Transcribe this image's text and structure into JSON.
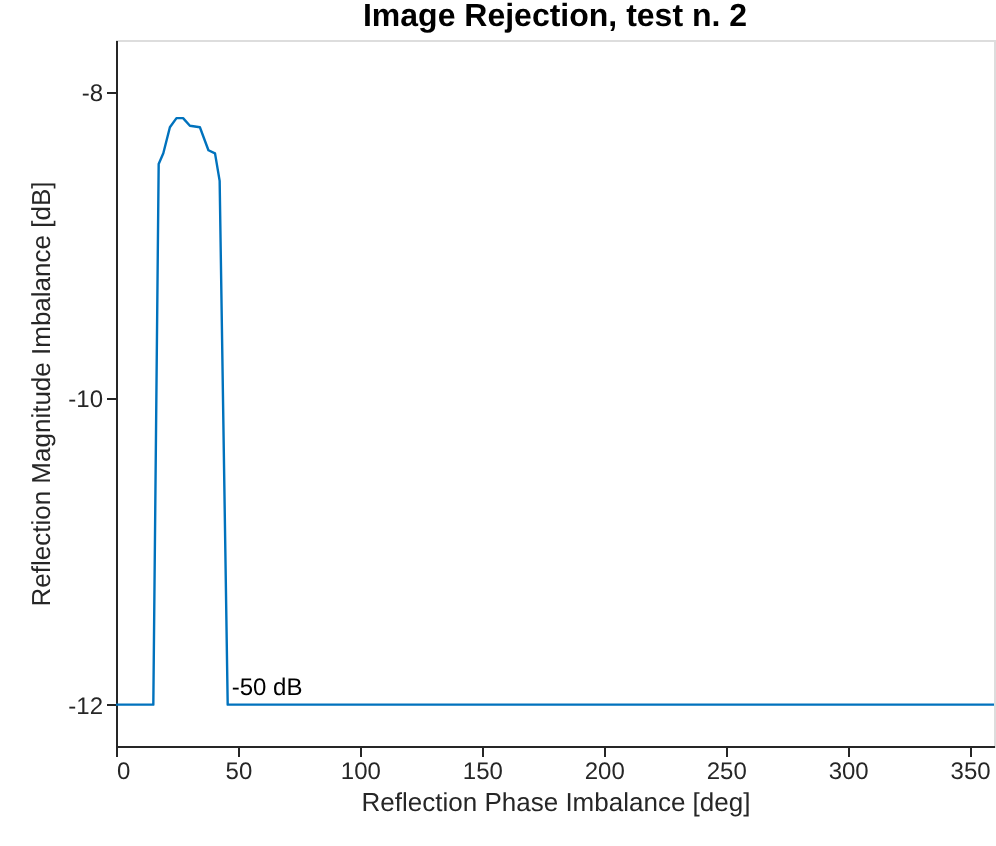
{
  "chart_data": {
    "type": "line",
    "title": "Image Rejection, test n. 2",
    "xlabel": "Reflection Phase Imbalance [deg]",
    "ylabel": "Reflection Magnitude Imbalance [dB]",
    "x": [
      0,
      15.3,
      17.5,
      19.4,
      22.1,
      24.8,
      27.5,
      30.3,
      34.4,
      37.9,
      40.6,
      42.5,
      45.8,
      360
    ],
    "series": [
      {
        "color": "#0072bd",
        "values": [
          -12,
          -12,
          -8.47,
          -8.4,
          -8.23,
          -8.17,
          -8.17,
          -8.22,
          -8.23,
          -8.38,
          -8.4,
          -8.58,
          -12,
          -12
        ]
      }
    ],
    "xlim": [
      0,
      360
    ],
    "xticks": [
      0,
      50,
      100,
      150,
      200,
      250,
      300,
      350
    ],
    "ylim": [
      -12.27,
      -7.66
    ],
    "yticks": [
      -12,
      -10,
      -8
    ],
    "annotations": [
      {
        "text": "-50 dB",
        "x": 45.8,
        "y": -12
      }
    ],
    "grid": false
  }
}
